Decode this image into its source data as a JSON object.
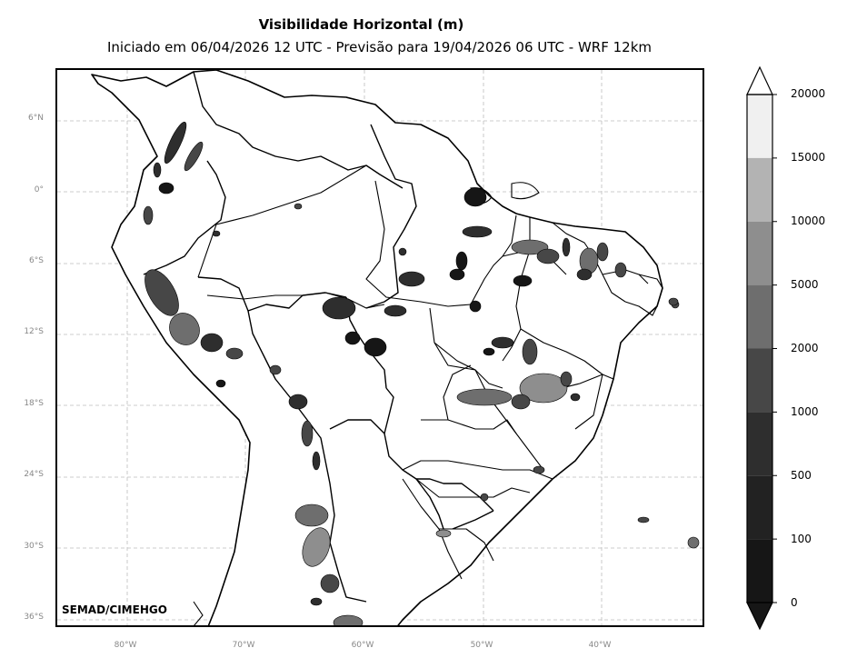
{
  "title": "Visibilidade Horizontal (m)",
  "subtitle": "Iniciado em 06/04/2026 12 UTC - Previsão para 19/04/2026 06 UTC - WRF 12km",
  "credit": "SEMAD/CIMEHGO",
  "lat_labels": [
    "6°N",
    "0°",
    "6°S",
    "12°S",
    "18°S",
    "24°S",
    "30°S",
    "36°S"
  ],
  "lon_labels": [
    "80°W",
    "70°W",
    "60°W",
    "50°W",
    "40°W"
  ],
  "colorbar": {
    "ticks": [
      "20000",
      "15000",
      "10000",
      "5000",
      "2000",
      "1000",
      "500",
      "100",
      "0"
    ],
    "colors": [
      "#f0f0f0",
      "#b3b3b3",
      "#8e8e8e",
      "#6e6e6e",
      "#474747",
      "#2e2e2e",
      "#222222",
      "#161616"
    ],
    "extend": "both"
  },
  "map": {
    "graticule_color": "#bdbdbd",
    "land_color": "#ffffff",
    "border_color": "#000000"
  }
}
